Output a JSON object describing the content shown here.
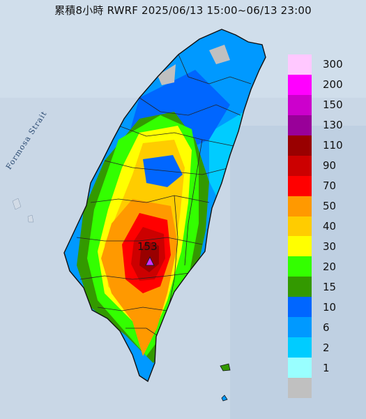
{
  "title": "累積8小時 RWRF 2025/06/13 15:00~06/13 23:00",
  "map": {
    "strait_label": "Formosa Strait",
    "peak_value": "153",
    "peak_marker_icon": "triangle-marker-icon",
    "sea_color": "#c9d7e6",
    "land_no_rain_color": "#c0c0c0",
    "boundary_color": "#222222"
  },
  "legend": {
    "units_shown": false,
    "items": [
      {
        "label": "300",
        "color": "#ffc8ff"
      },
      {
        "label": "200",
        "color": "#ff00ff"
      },
      {
        "label": "150",
        "color": "#cc00cc"
      },
      {
        "label": "130",
        "color": "#990099"
      },
      {
        "label": "110",
        "color": "#990000"
      },
      {
        "label": "90",
        "color": "#cc0000"
      },
      {
        "label": "70",
        "color": "#ff0000"
      },
      {
        "label": "50",
        "color": "#ff9900"
      },
      {
        "label": "40",
        "color": "#ffcc00"
      },
      {
        "label": "30",
        "color": "#ffff00"
      },
      {
        "label": "20",
        "color": "#33ff00"
      },
      {
        "label": "15",
        "color": "#339900"
      },
      {
        "label": "10",
        "color": "#0066ff"
      },
      {
        "label": "6",
        "color": "#0099ff"
      },
      {
        "label": "2",
        "color": "#00ccff"
      },
      {
        "label": "1",
        "color": "#99ffff"
      },
      {
        "label": "",
        "color": "#c0c0c0"
      }
    ]
  }
}
